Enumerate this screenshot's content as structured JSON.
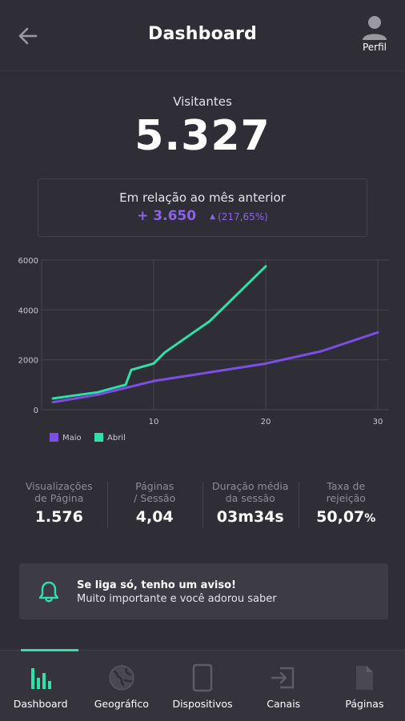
{
  "header": {
    "title": "Dashboard",
    "profile_label": "Perfil"
  },
  "visitors": {
    "label": "Visitantes",
    "value": "5.327"
  },
  "comparison": {
    "title": "Em relação ao mês anterior",
    "delta": "+ 3.650",
    "percent": "(217,65%)"
  },
  "chart_data": {
    "type": "line",
    "xlim": [
      0,
      31
    ],
    "ylim": [
      0,
      6000
    ],
    "x_ticks": [
      "10",
      "20",
      "30"
    ],
    "y_ticks": [
      "6000",
      "4000",
      "2000",
      "0"
    ],
    "series": [
      {
        "name": "Maio",
        "color": "#7b4fe6",
        "x": [
          1,
          5,
          10,
          15,
          20,
          25,
          30
        ],
        "y": [
          300,
          600,
          1150,
          1500,
          1850,
          2350,
          3100
        ]
      },
      {
        "name": "Abril",
        "color": "#2fe0a8",
        "x": [
          1,
          5,
          7.5,
          8,
          10,
          11,
          15,
          20
        ],
        "y": [
          450,
          700,
          1000,
          1600,
          1850,
          2300,
          3550,
          5750
        ]
      }
    ],
    "legend_position": "bottom-left",
    "grid": true
  },
  "stats": [
    {
      "label1": "Visualizações",
      "label2": "de Página",
      "value": "1.576",
      "unit": ""
    },
    {
      "label1": "Páginas",
      "label2": "/ Sessão",
      "value": "4,04",
      "unit": ""
    },
    {
      "label1": "Duração média",
      "label2": "da sessão",
      "value": "03m34s",
      "unit": ""
    },
    {
      "label1": "Taxa de",
      "label2": "rejeição",
      "value": "50,07",
      "unit": "%"
    }
  ],
  "notice": {
    "title": "Se liga só, tenho um aviso!",
    "text": "Muito importante e você adorou saber"
  },
  "nav": {
    "items": [
      {
        "label": "Dashboard",
        "icon": "bar-chart-icon",
        "active": true
      },
      {
        "label": "Geográfico",
        "icon": "globe-icon",
        "active": false
      },
      {
        "label": "Dispositivos",
        "icon": "tablet-icon",
        "active": false
      },
      {
        "label": "Canais",
        "icon": "login-icon",
        "active": false
      },
      {
        "label": "Páginas",
        "icon": "document-icon",
        "active": false
      }
    ]
  },
  "colors": {
    "background": "#2f2e36",
    "accent_purple": "#7b4fe6",
    "accent_green": "#2fe0a8"
  }
}
